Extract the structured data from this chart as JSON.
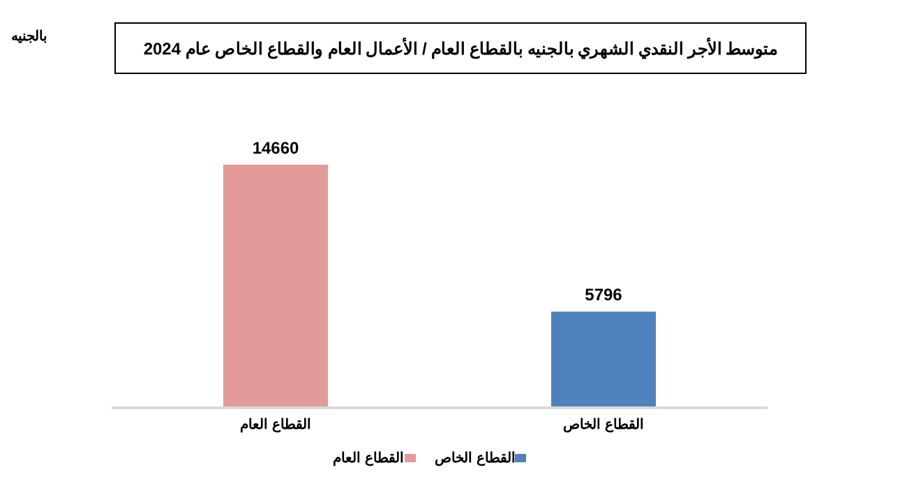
{
  "chart_data": {
    "type": "bar",
    "title": "متوسط الأجر النقدي الشهري بالجنيه بالقطاع العام / الأعمال العام والقطاع الخاص عام 2024",
    "annotations": [
      "بالجنيه"
    ],
    "categories": [
      "القطاع العام",
      "القطاع الخاص"
    ],
    "series": [
      {
        "name": "القطاع العام",
        "color": "#e39a9a",
        "values": [
          14660,
          null
        ]
      },
      {
        "name": "القطاع الخاص",
        "color": "#4f81bd",
        "values": [
          null,
          5796
        ]
      }
    ],
    "stacked": true,
    "data_labels": true,
    "legend": "bottom"
  }
}
